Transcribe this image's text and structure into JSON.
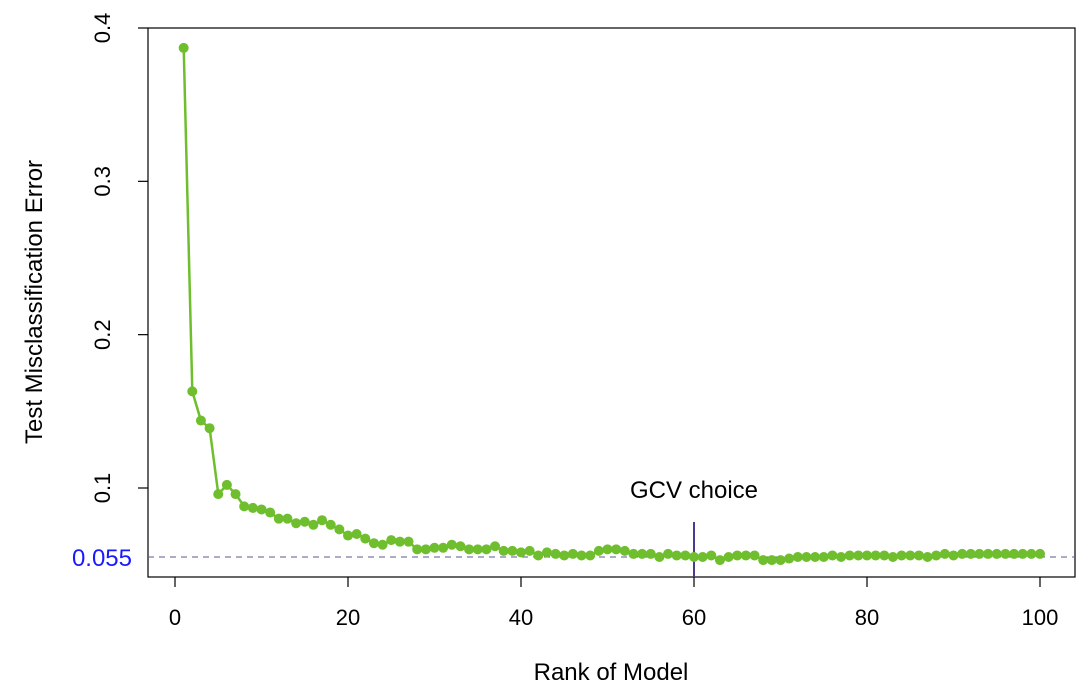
{
  "chart_data": {
    "type": "line",
    "title": "",
    "xlabel": "Rank of Model",
    "ylabel": "Test Misclassification Error",
    "xlim": [
      -2,
      104
    ],
    "ylim": [
      0.04,
      0.4
    ],
    "x_ticks": [
      0,
      20,
      40,
      60,
      80,
      100
    ],
    "y_ticks": [
      0.1,
      0.2,
      0.3,
      0.4
    ],
    "x_tick_labels": [
      "0",
      "20",
      "40",
      "60",
      "80",
      "100"
    ],
    "y_tick_labels": [
      "0.1",
      "0.2",
      "0.3",
      "0.4"
    ],
    "grid": false,
    "legend": "none",
    "series_color": "#6ebe2e",
    "reference_line": {
      "y": 0.055,
      "label": "0.055",
      "style": "dashed",
      "color": "#5a5a8c",
      "label_color": "#1a1aff"
    },
    "annotation": {
      "x": 60,
      "label": "GCV choice",
      "color": "#4b3b8f"
    },
    "series": [
      {
        "x": [
          1,
          2,
          3,
          4,
          5,
          6,
          7,
          8,
          9,
          10,
          11,
          12,
          13,
          14,
          15,
          16,
          17,
          18,
          19,
          20,
          21,
          22,
          23,
          24,
          25,
          26,
          27,
          28,
          29,
          30,
          31,
          32,
          33,
          34,
          35,
          36,
          37,
          38,
          39,
          40,
          41,
          42,
          43,
          44,
          45,
          46,
          47,
          48,
          49,
          50,
          51,
          52,
          53,
          54,
          55,
          56,
          57,
          58,
          59,
          60,
          61,
          62,
          63,
          64,
          65,
          66,
          67,
          68,
          69,
          70,
          71,
          72,
          73,
          74,
          75,
          76,
          77,
          78,
          79,
          80,
          81,
          82,
          83,
          84,
          85,
          86,
          87,
          88,
          89,
          90,
          91,
          92,
          93,
          94,
          95,
          96,
          97,
          98,
          99,
          100
        ],
        "values": [
          0.387,
          0.163,
          0.144,
          0.139,
          0.096,
          0.102,
          0.096,
          0.088,
          0.087,
          0.086,
          0.084,
          0.08,
          0.08,
          0.077,
          0.078,
          0.076,
          0.079,
          0.076,
          0.073,
          0.069,
          0.07,
          0.067,
          0.064,
          0.063,
          0.066,
          0.065,
          0.065,
          0.06,
          0.06,
          0.061,
          0.061,
          0.063,
          0.062,
          0.06,
          0.06,
          0.06,
          0.062,
          0.059,
          0.059,
          0.058,
          0.059,
          0.056,
          0.058,
          0.057,
          0.056,
          0.057,
          0.056,
          0.056,
          0.059,
          0.06,
          0.06,
          0.059,
          0.057,
          0.057,
          0.057,
          0.055,
          0.057,
          0.056,
          0.056,
          0.055,
          0.055,
          0.056,
          0.053,
          0.055,
          0.056,
          0.056,
          0.056,
          0.053,
          0.053,
          0.053,
          0.054,
          0.055,
          0.055,
          0.055,
          0.055,
          0.056,
          0.055,
          0.056,
          0.056,
          0.056,
          0.056,
          0.056,
          0.055,
          0.056,
          0.056,
          0.056,
          0.055,
          0.056,
          0.057,
          0.056,
          0.057,
          0.057,
          0.057,
          0.057,
          0.057,
          0.057,
          0.057,
          0.057,
          0.057,
          0.057
        ]
      }
    ]
  }
}
